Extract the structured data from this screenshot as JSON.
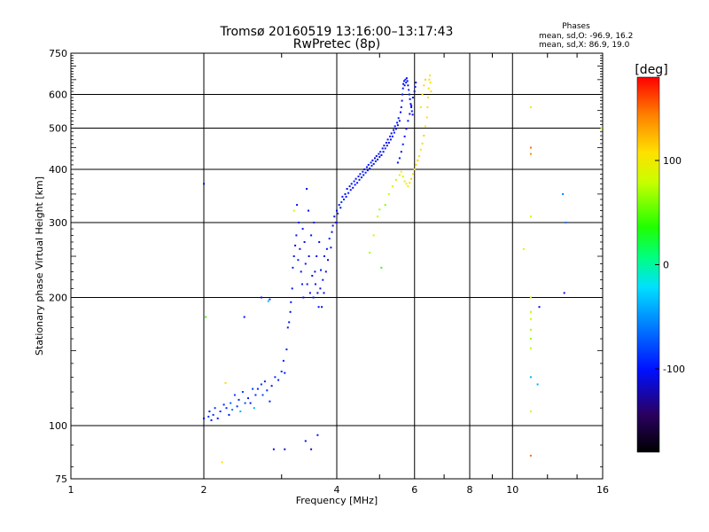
{
  "header": {
    "title": "Tromsø 20160519 13:16:00–13:17:43",
    "subtitle": "RwPretec (8p)",
    "phase_box": {
      "heading": "Phases",
      "line1": "mean, sd,O: -96.9, 16.2",
      "line2": "mean, sd,X:  86.9, 19.0"
    }
  },
  "colorbar": {
    "label": "[deg]",
    "ticks": [
      {
        "value": 100,
        "label": "100"
      },
      {
        "value": 0,
        "label": "0"
      },
      {
        "value": -100,
        "label": "-100"
      }
    ],
    "range": [
      -180,
      180
    ]
  },
  "chart_data": {
    "type": "scatter",
    "xlabel": "Frequency [MHz]",
    "ylabel": "Stationary phase Virtual Height [km]",
    "xscale": "log",
    "yscale": "log",
    "xlim": [
      1,
      16
    ],
    "ylim": [
      75,
      750
    ],
    "xticks": [
      {
        "value": 1,
        "label": "1"
      },
      {
        "value": 2,
        "label": "2"
      },
      {
        "value": 4,
        "label": "4"
      },
      {
        "value": 6,
        "label": "6"
      },
      {
        "value": 8,
        "label": "8"
      },
      {
        "value": 10,
        "label": "10"
      },
      {
        "value": 16,
        "label": "16"
      }
    ],
    "yticks": [
      {
        "value": 75,
        "label": "75"
      },
      {
        "value": 100,
        "label": "100"
      },
      {
        "value": 200,
        "label": "200"
      },
      {
        "value": 300,
        "label": "300"
      },
      {
        "value": 400,
        "label": "400"
      },
      {
        "value": 500,
        "label": "500"
      },
      {
        "value": 600,
        "label": "600"
      },
      {
        "value": 750,
        "label": "750"
      }
    ],
    "grid": true,
    "colormap": "rainbow phase",
    "points": [
      [
        2.0,
        370,
        -105
      ],
      [
        2.0,
        104,
        -105
      ],
      [
        2.02,
        180,
        45
      ],
      [
        2.05,
        105,
        -90
      ],
      [
        2.06,
        108,
        -95
      ],
      [
        2.08,
        103,
        -100
      ],
      [
        2.1,
        106,
        -90
      ],
      [
        2.12,
        110,
        -85
      ],
      [
        2.15,
        104,
        -100
      ],
      [
        2.18,
        108,
        -90
      ],
      [
        2.2,
        82,
        110
      ],
      [
        2.22,
        112,
        -95
      ],
      [
        2.24,
        126,
        110
      ],
      [
        2.25,
        110,
        -90
      ],
      [
        2.28,
        106,
        -100
      ],
      [
        2.3,
        113,
        -70
      ],
      [
        2.32,
        109,
        -60
      ],
      [
        2.35,
        118,
        -85
      ],
      [
        2.38,
        111,
        -90
      ],
      [
        2.4,
        115,
        -95
      ],
      [
        2.42,
        108,
        -40
      ],
      [
        2.45,
        120,
        -85
      ],
      [
        2.47,
        180,
        -105
      ],
      [
        2.48,
        113,
        -80
      ],
      [
        2.52,
        116,
        -95
      ],
      [
        2.55,
        113,
        -100
      ],
      [
        2.58,
        122,
        -85
      ],
      [
        2.6,
        110,
        -40
      ],
      [
        2.62,
        118,
        -90
      ],
      [
        2.65,
        122,
        -95
      ],
      [
        2.7,
        200,
        -105
      ],
      [
        2.7,
        125,
        -90
      ],
      [
        2.72,
        118,
        -80
      ],
      [
        2.75,
        127,
        -95
      ],
      [
        2.78,
        121,
        -90
      ],
      [
        2.8,
        196,
        -35
      ],
      [
        2.82,
        198,
        -85
      ],
      [
        2.82,
        114,
        -95
      ],
      [
        2.85,
        124,
        -100
      ],
      [
        2.88,
        88,
        -110
      ],
      [
        2.9,
        130,
        -90
      ],
      [
        2.95,
        128,
        -95
      ],
      [
        3.0,
        134,
        -90
      ],
      [
        3.03,
        142,
        -95
      ],
      [
        3.05,
        88,
        -115
      ],
      [
        3.05,
        133,
        -100
      ],
      [
        3.08,
        151,
        -95
      ],
      [
        3.1,
        170,
        -100
      ],
      [
        3.12,
        175,
        -105
      ],
      [
        3.14,
        185,
        -110
      ],
      [
        3.15,
        195,
        -100
      ],
      [
        3.17,
        210,
        -105
      ],
      [
        3.18,
        235,
        -95
      ],
      [
        3.2,
        250,
        -100
      ],
      [
        3.2,
        320,
        85
      ],
      [
        3.22,
        265,
        -105
      ],
      [
        3.24,
        280,
        -100
      ],
      [
        3.25,
        330,
        -110
      ],
      [
        3.27,
        245,
        -95
      ],
      [
        3.28,
        300,
        -100
      ],
      [
        3.3,
        260,
        -105
      ],
      [
        3.32,
        230,
        -110
      ],
      [
        3.34,
        215,
        -95
      ],
      [
        3.35,
        290,
        -100
      ],
      [
        3.36,
        200,
        -110
      ],
      [
        3.38,
        270,
        -105
      ],
      [
        3.4,
        240,
        -100
      ],
      [
        3.4,
        92,
        -110
      ],
      [
        3.42,
        360,
        -110
      ],
      [
        3.43,
        215,
        -105
      ],
      [
        3.45,
        320,
        -100
      ],
      [
        3.46,
        250,
        -110
      ],
      [
        3.48,
        205,
        -105
      ],
      [
        3.5,
        280,
        -100
      ],
      [
        3.5,
        88,
        -115
      ],
      [
        3.52,
        225,
        -105
      ],
      [
        3.54,
        200,
        -100
      ],
      [
        3.55,
        300,
        -95
      ],
      [
        3.57,
        230,
        -110
      ],
      [
        3.58,
        215,
        -100
      ],
      [
        3.6,
        250,
        -105
      ],
      [
        3.62,
        205,
        -110
      ],
      [
        3.62,
        95,
        -105
      ],
      [
        3.64,
        190,
        -100
      ],
      [
        3.65,
        270,
        -105
      ],
      [
        3.67,
        210,
        -110
      ],
      [
        3.68,
        232,
        -100
      ],
      [
        3.7,
        190,
        -105
      ],
      [
        3.72,
        220,
        -100
      ],
      [
        3.74,
        205,
        -110
      ],
      [
        3.75,
        250,
        -100
      ],
      [
        3.78,
        230,
        -105
      ],
      [
        3.8,
        260,
        -100
      ],
      [
        3.82,
        245,
        -110
      ],
      [
        3.85,
        275,
        -95
      ],
      [
        3.88,
        262,
        -100
      ],
      [
        3.9,
        285,
        -110
      ],
      [
        3.92,
        295,
        -100
      ],
      [
        3.95,
        310,
        -105
      ],
      [
        3.98,
        300,
        -100
      ],
      [
        4.0,
        320,
        -110
      ],
      [
        4.02,
        315,
        -95
      ],
      [
        4.05,
        330,
        -100
      ],
      [
        4.08,
        325,
        -110
      ],
      [
        4.1,
        335,
        -90
      ],
      [
        4.12,
        345,
        -100
      ],
      [
        4.15,
        340,
        -95
      ],
      [
        4.18,
        350,
        -105
      ],
      [
        4.2,
        345,
        -100
      ],
      [
        4.22,
        360,
        -110
      ],
      [
        4.25,
        352,
        -95
      ],
      [
        4.28,
        365,
        -100
      ],
      [
        4.3,
        358,
        -105
      ],
      [
        4.32,
        370,
        -100
      ],
      [
        4.35,
        362,
        -110
      ],
      [
        4.38,
        375,
        -95
      ],
      [
        4.4,
        368,
        -100
      ],
      [
        4.42,
        380,
        -105
      ],
      [
        4.45,
        372,
        -100
      ],
      [
        4.48,
        385,
        -95
      ],
      [
        4.5,
        378,
        -110
      ],
      [
        4.52,
        390,
        -100
      ],
      [
        4.55,
        383,
        -105
      ],
      [
        4.58,
        395,
        -95
      ],
      [
        4.6,
        388,
        -100
      ],
      [
        4.62,
        400,
        -110
      ],
      [
        4.65,
        393,
        -95
      ],
      [
        4.68,
        405,
        -100
      ],
      [
        4.7,
        398,
        -105
      ],
      [
        4.72,
        410,
        -100
      ],
      [
        4.75,
        402,
        -110
      ],
      [
        4.78,
        415,
        -95
      ],
      [
        4.8,
        408,
        -100
      ],
      [
        4.82,
        420,
        -105
      ],
      [
        4.85,
        412,
        -100
      ],
      [
        4.88,
        425,
        -110
      ],
      [
        4.9,
        418,
        -95
      ],
      [
        4.92,
        430,
        -100
      ],
      [
        4.95,
        422,
        -105
      ],
      [
        4.98,
        435,
        -100
      ],
      [
        5.0,
        428,
        -110
      ],
      [
        5.02,
        440,
        -95
      ],
      [
        5.05,
        432,
        -100
      ],
      [
        5.08,
        448,
        -105
      ],
      [
        5.1,
        440,
        -100
      ],
      [
        5.12,
        455,
        -110
      ],
      [
        5.15,
        448,
        -95
      ],
      [
        5.18,
        462,
        -100
      ],
      [
        5.2,
        455,
        -105
      ],
      [
        5.22,
        470,
        -100
      ],
      [
        5.25,
        462,
        -110
      ],
      [
        5.28,
        478,
        -95
      ],
      [
        5.3,
        470,
        -100
      ],
      [
        5.32,
        486,
        -105
      ],
      [
        5.35,
        478,
        -100
      ],
      [
        5.38,
        495,
        -110
      ],
      [
        5.4,
        488,
        -95
      ],
      [
        5.42,
        505,
        -100
      ],
      [
        5.45,
        498,
        -105
      ],
      [
        5.48,
        515,
        -100
      ],
      [
        5.5,
        508,
        -110
      ],
      [
        5.52,
        528,
        -95
      ],
      [
        5.55,
        520,
        -100
      ],
      [
        5.58,
        545,
        -105
      ],
      [
        5.6,
        560,
        -100
      ],
      [
        5.62,
        580,
        -110
      ],
      [
        5.63,
        600,
        -95
      ],
      [
        5.65,
        620,
        -100
      ],
      [
        5.66,
        635,
        -105
      ],
      [
        5.68,
        645,
        -100
      ],
      [
        5.7,
        630,
        -110
      ],
      [
        5.72,
        650,
        -95
      ],
      [
        5.74,
        640,
        -100
      ],
      [
        5.76,
        655,
        -105
      ],
      [
        5.78,
        645,
        -100
      ],
      [
        5.8,
        630,
        -110
      ],
      [
        5.82,
        615,
        -95
      ],
      [
        5.84,
        600,
        -100
      ],
      [
        5.86,
        585,
        -105
      ],
      [
        5.88,
        570,
        -100
      ],
      [
        5.9,
        560,
        -110
      ],
      [
        5.92,
        548,
        -95
      ],
      [
        5.94,
        538,
        -100
      ],
      [
        5.5,
        415,
        -105
      ],
      [
        5.55,
        425,
        -100
      ],
      [
        5.6,
        440,
        -110
      ],
      [
        5.65,
        458,
        -95
      ],
      [
        5.7,
        478,
        -100
      ],
      [
        5.75,
        498,
        -105
      ],
      [
        5.8,
        520,
        -100
      ],
      [
        5.85,
        540,
        -110
      ],
      [
        5.9,
        565,
        -95
      ],
      [
        5.95,
        590,
        -100
      ],
      [
        6.0,
        610,
        -105
      ],
      [
        6.02,
        625,
        -100
      ],
      [
        6.04,
        640,
        -110
      ],
      [
        4.75,
        255,
        70
      ],
      [
        4.85,
        280,
        80
      ],
      [
        4.95,
        310,
        75
      ],
      [
        5.0,
        322,
        70
      ],
      [
        5.05,
        235,
        40
      ],
      [
        5.15,
        330,
        60
      ],
      [
        5.25,
        350,
        80
      ],
      [
        5.35,
        365,
        90
      ],
      [
        5.45,
        378,
        75
      ],
      [
        5.55,
        388,
        85
      ],
      [
        5.6,
        395,
        100
      ],
      [
        5.65,
        385,
        80
      ],
      [
        5.7,
        375,
        90
      ],
      [
        5.75,
        370,
        95
      ],
      [
        5.8,
        365,
        100
      ],
      [
        5.85,
        372,
        110
      ],
      [
        5.9,
        380,
        115
      ],
      [
        5.95,
        390,
        100
      ],
      [
        6.0,
        400,
        105
      ],
      [
        6.05,
        410,
        110
      ],
      [
        6.1,
        420,
        115
      ],
      [
        6.15,
        430,
        100
      ],
      [
        6.2,
        445,
        105
      ],
      [
        6.25,
        460,
        110
      ],
      [
        6.3,
        480,
        115
      ],
      [
        6.35,
        505,
        100
      ],
      [
        6.4,
        530,
        105
      ],
      [
        6.42,
        560,
        110
      ],
      [
        6.44,
        590,
        100
      ],
      [
        6.46,
        620,
        105
      ],
      [
        6.48,
        650,
        110
      ],
      [
        6.5,
        665,
        100
      ],
      [
        6.52,
        640,
        105
      ],
      [
        6.54,
        610,
        110
      ],
      [
        6.2,
        560,
        100
      ],
      [
        6.25,
        600,
        105
      ],
      [
        6.3,
        630,
        110
      ],
      [
        6.35,
        650,
        115
      ],
      [
        11.0,
        560,
        100
      ],
      [
        11.0,
        450,
        150
      ],
      [
        11.0,
        435,
        140
      ],
      [
        11.0,
        310,
        90
      ],
      [
        11.0,
        200,
        85
      ],
      [
        11.0,
        185,
        75
      ],
      [
        11.0,
        178,
        80
      ],
      [
        11.0,
        168,
        70
      ],
      [
        11.0,
        160,
        65
      ],
      [
        11.0,
        152,
        75
      ],
      [
        11.0,
        130,
        -40
      ],
      [
        11.0,
        108,
        80
      ],
      [
        11.0,
        85,
        150
      ],
      [
        10.6,
        260,
        85
      ],
      [
        11.5,
        190,
        -110
      ],
      [
        11.4,
        125,
        -40
      ],
      [
        13.0,
        350,
        -60
      ],
      [
        13.2,
        300,
        -60
      ],
      [
        13.1,
        205,
        -110
      ],
      [
        15.9,
        500,
        90
      ]
    ]
  }
}
